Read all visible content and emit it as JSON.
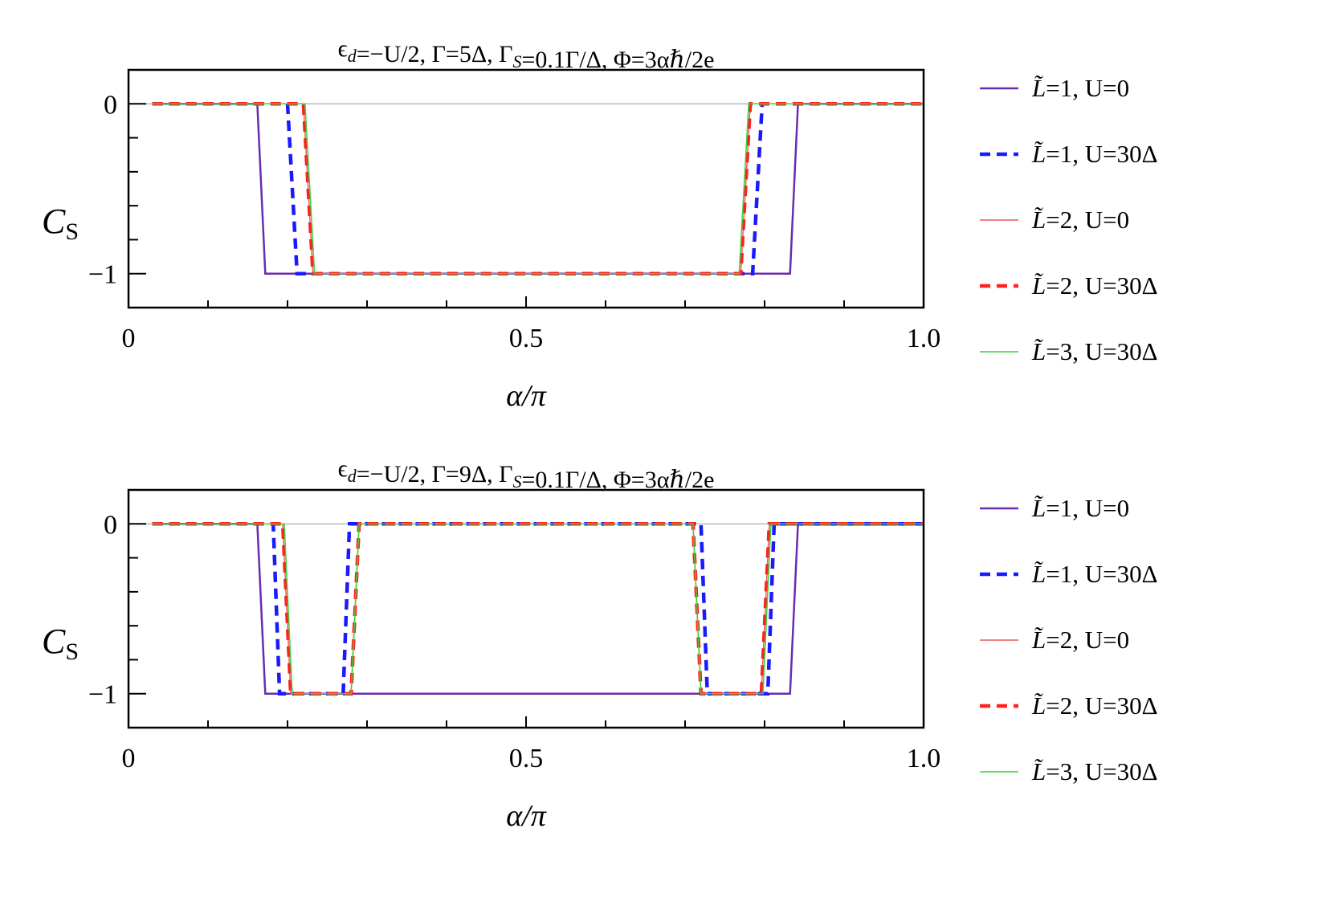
{
  "chart_data": [
    {
      "type": "line",
      "title": "ϵd=−U/2, Γ=5Δ, ΓS=0.1Γ/Δ,  Φ=3αℏ/2e",
      "xlabel": "α/π",
      "ylabel": "CS",
      "xlim": [
        0,
        1
      ],
      "ylim": [
        -1.2,
        0.2
      ],
      "xticks": [
        {
          "v": 0,
          "label": "0"
        },
        {
          "v": 0.5,
          "label": "0.5"
        },
        {
          "v": 1,
          "label": "1.0"
        }
      ],
      "yticks": [
        {
          "v": 0,
          "label": "0"
        },
        {
          "v": -1,
          "label": "−1"
        }
      ],
      "legend_position": "right",
      "series": [
        {
          "name": "L̃=1, U=0",
          "color": "#6a2bb0",
          "style": "solid",
          "width": 2.5,
          "x": [
            0.03,
            0.162,
            0.172,
            0.832,
            0.842,
            1.0
          ],
          "y": [
            0,
            0,
            -1,
            -1,
            0,
            0
          ]
        },
        {
          "name": "L̃=1, U=30Δ",
          "color": "#1a1aff",
          "style": "dashed",
          "width": 4.5,
          "x": [
            0.03,
            0.2,
            0.212,
            0.785,
            0.797,
            1.0
          ],
          "y": [
            0,
            0,
            -1,
            -1,
            0,
            0
          ]
        },
        {
          "name": "L̃=2, U=0",
          "color": "#e85a5a",
          "style": "solid",
          "width": 1.5,
          "x": [
            0.03,
            0.22,
            0.232,
            0.77,
            0.782,
            1.0
          ],
          "y": [
            0,
            0,
            -1,
            -1,
            0,
            0
          ]
        },
        {
          "name": "L̃=2, U=30Δ",
          "color": "#ff2020",
          "style": "dashed",
          "width": 4.5,
          "x": [
            0.03,
            0.22,
            0.232,
            0.77,
            0.782,
            1.0
          ],
          "y": [
            0,
            0,
            -1,
            -1,
            0,
            0
          ]
        },
        {
          "name": "L̃=3, U=30Δ",
          "color": "#3ad23a",
          "style": "solid",
          "width": 1.5,
          "x": [
            0.03,
            0.222,
            0.234,
            0.768,
            0.78,
            1.0
          ],
          "y": [
            0,
            0,
            -1,
            -1,
            0,
            0
          ]
        }
      ]
    },
    {
      "type": "line",
      "title": "ϵd=−U/2, Γ=9Δ, ΓS=0.1Γ/Δ,  Φ=3αℏ/2e",
      "xlabel": "α/π",
      "ylabel": "CS",
      "xlim": [
        0,
        1
      ],
      "ylim": [
        -1.2,
        0.2
      ],
      "xticks": [
        {
          "v": 0,
          "label": "0"
        },
        {
          "v": 0.5,
          "label": "0.5"
        },
        {
          "v": 1,
          "label": "1.0"
        }
      ],
      "yticks": [
        {
          "v": 0,
          "label": "0"
        },
        {
          "v": -1,
          "label": "−1"
        }
      ],
      "legend_position": "right",
      "series": [
        {
          "name": "L̃=1, U=0",
          "color": "#6a2bb0",
          "style": "solid",
          "width": 2.5,
          "x": [
            0.03,
            0.162,
            0.172,
            0.832,
            0.842,
            1.0
          ],
          "y": [
            0,
            0,
            -1,
            -1,
            0,
            0
          ]
        },
        {
          "name": "L̃=1, U=30Δ",
          "color": "#1a1aff",
          "style": "dashed",
          "width": 4.5,
          "x": [
            0.03,
            0.182,
            0.19,
            0.27,
            0.278,
            0.72,
            0.728,
            0.804,
            0.812,
            1.0
          ],
          "y": [
            0,
            0,
            -1,
            -1,
            0,
            0,
            -1,
            -1,
            0,
            0
          ]
        },
        {
          "name": "L̃=2, U=0",
          "color": "#e85a5a",
          "style": "solid",
          "width": 1.5,
          "x": [
            0.03,
            0.194,
            0.204,
            0.28,
            0.29,
            0.71,
            0.72,
            0.796,
            0.806,
            1.0
          ],
          "y": [
            0,
            0,
            -1,
            -1,
            0,
            0,
            -1,
            -1,
            0,
            0
          ]
        },
        {
          "name": "L̃=2, U=30Δ",
          "color": "#ff2020",
          "style": "dashed",
          "width": 4.5,
          "x": [
            0.03,
            0.194,
            0.204,
            0.28,
            0.29,
            0.71,
            0.72,
            0.796,
            0.806,
            1.0
          ],
          "y": [
            0,
            0,
            -1,
            -1,
            0,
            0,
            -1,
            -1,
            0,
            0
          ]
        },
        {
          "name": "L̃=3, U=30Δ",
          "color": "#3ad23a",
          "style": "solid",
          "width": 1.5,
          "x": [
            0.03,
            0.196,
            0.206,
            0.28,
            0.29,
            0.71,
            0.72,
            0.798,
            0.808,
            1.0
          ],
          "y": [
            0,
            0,
            -1,
            -1,
            0,
            0,
            -1,
            -1,
            0,
            0
          ]
        }
      ]
    }
  ]
}
